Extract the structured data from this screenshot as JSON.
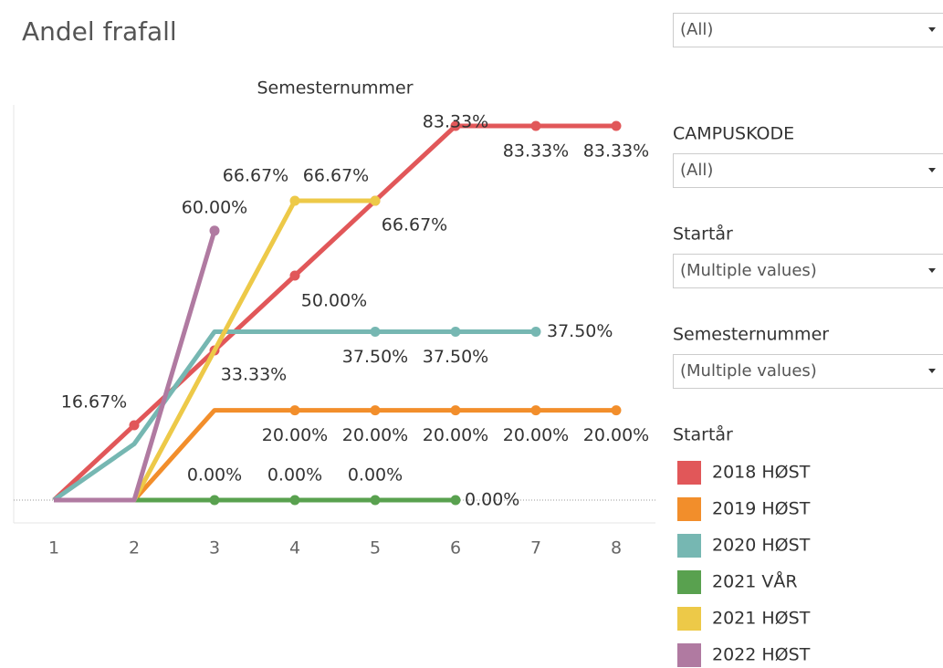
{
  "chart_data": {
    "type": "line",
    "title": "Andel frafall",
    "x_label": "Semesternummer",
    "categories": [
      "1",
      "2",
      "3",
      "4",
      "5",
      "6",
      "7",
      "8"
    ],
    "series": [
      {
        "name": "2018 HØST",
        "color": "#e15759",
        "values": [
          0,
          16.67,
          33.33,
          50.0,
          66.67,
          83.33,
          83.33,
          83.33
        ],
        "value_labels": [
          null,
          "16.67%",
          "33.33%",
          "50.00%",
          "66.67%",
          "83.33%",
          "83.33%",
          "83.33%"
        ]
      },
      {
        "name": "2019 HØST",
        "color": "#f28e2b",
        "values": [
          0,
          0,
          20,
          20,
          20,
          20,
          20,
          20
        ],
        "value_labels": [
          null,
          null,
          null,
          "20.00%",
          "20.00%",
          "20.00%",
          "20.00%",
          "20.00%"
        ]
      },
      {
        "name": "2020 HØST",
        "color": "#76b7b2",
        "values": [
          0,
          12.5,
          37.5,
          37.5,
          37.5,
          37.5,
          37.5,
          null
        ],
        "value_labels": [
          null,
          null,
          null,
          null,
          "37.50%",
          "37.50%",
          "37.50%",
          null
        ]
      },
      {
        "name": "2021 VÅR",
        "color": "#59a14f",
        "values": [
          0,
          0,
          0,
          0,
          0,
          0,
          null,
          null
        ],
        "value_labels": [
          null,
          null,
          "0.00%",
          "0.00%",
          "0.00%",
          "0.00%",
          null,
          null
        ]
      },
      {
        "name": "2021 HØST",
        "color": "#edc948",
        "values": [
          0,
          0,
          33.33,
          66.67,
          66.67,
          null,
          null,
          null
        ],
        "value_labels": [
          null,
          null,
          null,
          "66.67%",
          "66.67%",
          null,
          null,
          null
        ]
      },
      {
        "name": "2022 HØST",
        "color": "#b07aa1",
        "values": [
          0,
          0,
          60.0,
          null,
          null,
          null,
          null,
          null
        ],
        "value_labels": [
          null,
          null,
          "60.00%",
          null,
          null,
          null,
          null,
          null
        ]
      }
    ],
    "legend_title": "Startår"
  },
  "filters": [
    {
      "label": null,
      "value": "(All)"
    },
    {
      "label": "CAMPUSKODE",
      "value": "(All)"
    },
    {
      "label": "Startår",
      "value": "(Multiple values)"
    },
    {
      "label": "Semesternummer",
      "value": "(Multiple values)"
    }
  ]
}
